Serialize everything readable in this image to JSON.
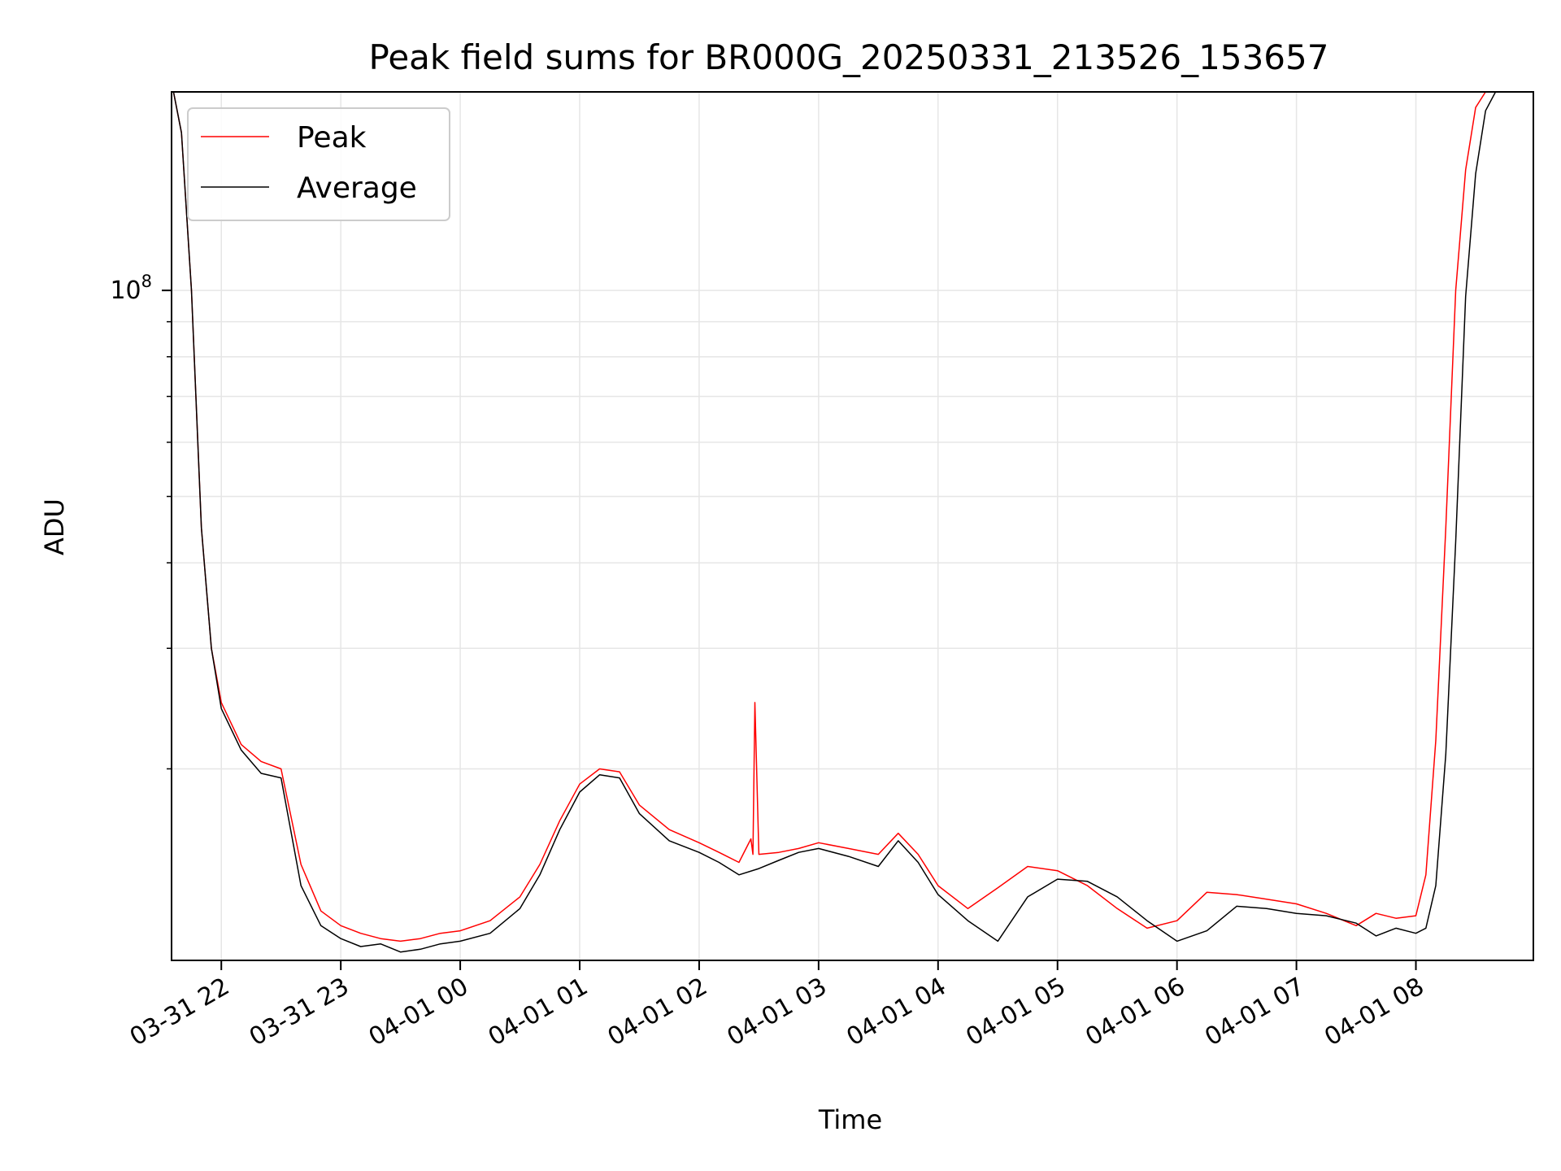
{
  "chart_data": {
    "type": "line",
    "title": "Peak field sums for BR000G_20250331_213526_153657",
    "xlabel": "Time",
    "ylabel": "ADU",
    "y_scale": "log",
    "grid": true,
    "legend_position": "top-left",
    "xlim": [
      "2025-03-31 21:35",
      "2025-04-01 08:59"
    ],
    "ylim": [
      10500000,
      195000000
    ],
    "x_ticks": [
      {
        "value": "2025-03-31 22:00",
        "label": "03-31 22"
      },
      {
        "value": "2025-03-31 23:00",
        "label": "03-31 23"
      },
      {
        "value": "2025-04-01 00:00",
        "label": "04-01 00"
      },
      {
        "value": "2025-04-01 01:00",
        "label": "04-01 01"
      },
      {
        "value": "2025-04-01 02:00",
        "label": "04-01 02"
      },
      {
        "value": "2025-04-01 03:00",
        "label": "04-01 03"
      },
      {
        "value": "2025-04-01 04:00",
        "label": "04-01 04"
      },
      {
        "value": "2025-04-01 05:00",
        "label": "04-01 05"
      },
      {
        "value": "2025-04-01 06:00",
        "label": "04-01 06"
      },
      {
        "value": "2025-04-01 07:00",
        "label": "04-01 07"
      },
      {
        "value": "2025-04-01 08:00",
        "label": "04-01 08"
      }
    ],
    "y_major_ticks": [
      {
        "value": 100000000,
        "base": "10",
        "exponent": "8"
      }
    ],
    "y_minor_ticks": [
      20000000,
      30000000,
      40000000,
      50000000,
      60000000,
      70000000,
      80000000,
      90000000
    ],
    "series": [
      {
        "name": "Peak",
        "color": "#ff0000",
        "x": [
          "2025-03-31 21:36",
          "2025-03-31 21:40",
          "2025-03-31 21:45",
          "2025-03-31 21:50",
          "2025-03-31 21:55",
          "2025-03-31 22:00",
          "2025-03-31 22:10",
          "2025-03-31 22:20",
          "2025-03-31 22:30",
          "2025-03-31 22:40",
          "2025-03-31 22:50",
          "2025-03-31 23:00",
          "2025-03-31 23:10",
          "2025-03-31 23:20",
          "2025-03-31 23:30",
          "2025-03-31 23:40",
          "2025-03-31 23:50",
          "2025-04-01 00:00",
          "2025-04-01 00:15",
          "2025-04-01 00:30",
          "2025-04-01 00:40",
          "2025-04-01 00:50",
          "2025-04-01 01:00",
          "2025-04-01 01:10",
          "2025-04-01 01:20",
          "2025-04-01 01:30",
          "2025-04-01 01:45",
          "2025-04-01 02:00",
          "2025-04-01 02:10",
          "2025-04-01 02:20",
          "2025-04-01 02:26",
          "2025-04-01 02:27",
          "2025-04-01 02:28",
          "2025-04-01 02:30",
          "2025-04-01 02:40",
          "2025-04-01 02:50",
          "2025-04-01 03:00",
          "2025-04-01 03:15",
          "2025-04-01 03:30",
          "2025-04-01 03:40",
          "2025-04-01 03:50",
          "2025-04-01 04:00",
          "2025-04-01 04:15",
          "2025-04-01 04:30",
          "2025-04-01 04:45",
          "2025-04-01 05:00",
          "2025-04-01 05:15",
          "2025-04-01 05:30",
          "2025-04-01 05:45",
          "2025-04-01 06:00",
          "2025-04-01 06:15",
          "2025-04-01 06:30",
          "2025-04-01 06:45",
          "2025-04-01 07:00",
          "2025-04-01 07:15",
          "2025-04-01 07:30",
          "2025-04-01 07:40",
          "2025-04-01 07:50",
          "2025-04-01 08:00",
          "2025-04-01 08:05",
          "2025-04-01 08:10",
          "2025-04-01 08:15",
          "2025-04-01 08:20",
          "2025-04-01 08:25",
          "2025-04-01 08:30",
          "2025-04-01 08:35",
          "2025-04-01 08:40",
          "2025-04-01 08:45",
          "2025-04-01 08:50"
        ],
        "y": [
          195000000,
          170000000,
          100000000,
          45000000,
          30000000,
          25000000,
          21700000,
          20500000,
          20000000,
          14500000,
          12400000,
          11800000,
          11500000,
          11300000,
          11200000,
          11300000,
          11500000,
          11600000,
          12000000,
          13000000,
          14500000,
          16800000,
          19000000,
          20000000,
          19800000,
          17700000,
          16300000,
          15600000,
          15100000,
          14600000,
          15800000,
          15000000,
          25000000,
          15000000,
          15100000,
          15300000,
          15600000,
          15300000,
          15000000,
          16100000,
          15000000,
          13500000,
          12500000,
          13400000,
          14400000,
          14200000,
          13500000,
          12500000,
          11700000,
          12000000,
          13200000,
          13100000,
          12900000,
          12700000,
          12300000,
          11800000,
          12300000,
          12100000,
          12200000,
          14000000,
          22000000,
          45000000,
          100000000,
          150000000,
          185000000,
          195000000,
          195000000,
          195000000,
          195000000
        ]
      },
      {
        "name": "Average",
        "color": "#000000",
        "x": [
          "2025-03-31 21:36",
          "2025-03-31 21:40",
          "2025-03-31 21:45",
          "2025-03-31 21:50",
          "2025-03-31 21:55",
          "2025-03-31 22:00",
          "2025-03-31 22:10",
          "2025-03-31 22:20",
          "2025-03-31 22:30",
          "2025-03-31 22:40",
          "2025-03-31 22:50",
          "2025-03-31 23:00",
          "2025-03-31 23:10",
          "2025-03-31 23:20",
          "2025-03-31 23:30",
          "2025-03-31 23:40",
          "2025-03-31 23:50",
          "2025-04-01 00:00",
          "2025-04-01 00:15",
          "2025-04-01 00:30",
          "2025-04-01 00:40",
          "2025-04-01 00:50",
          "2025-04-01 01:00",
          "2025-04-01 01:10",
          "2025-04-01 01:20",
          "2025-04-01 01:30",
          "2025-04-01 01:45",
          "2025-04-01 02:00",
          "2025-04-01 02:10",
          "2025-04-01 02:20",
          "2025-04-01 02:30",
          "2025-04-01 02:40",
          "2025-04-01 02:50",
          "2025-04-01 03:00",
          "2025-04-01 03:15",
          "2025-04-01 03:30",
          "2025-04-01 03:40",
          "2025-04-01 03:50",
          "2025-04-01 04:00",
          "2025-04-01 04:15",
          "2025-04-01 04:30",
          "2025-04-01 04:45",
          "2025-04-01 05:00",
          "2025-04-01 05:15",
          "2025-04-01 05:30",
          "2025-04-01 05:45",
          "2025-04-01 06:00",
          "2025-04-01 06:15",
          "2025-04-01 06:30",
          "2025-04-01 06:45",
          "2025-04-01 07:00",
          "2025-04-01 07:15",
          "2025-04-01 07:30",
          "2025-04-01 07:40",
          "2025-04-01 07:50",
          "2025-04-01 08:00",
          "2025-04-01 08:05",
          "2025-04-01 08:10",
          "2025-04-01 08:15",
          "2025-04-01 08:20",
          "2025-04-01 08:25",
          "2025-04-01 08:30",
          "2025-04-01 08:35",
          "2025-04-01 08:40",
          "2025-04-01 08:45",
          "2025-04-01 08:50"
        ],
        "y": [
          195000000,
          170000000,
          100000000,
          45000000,
          30000000,
          24500000,
          21300000,
          19700000,
          19400000,
          13500000,
          11800000,
          11300000,
          11000000,
          11100000,
          10800000,
          10900000,
          11100000,
          11200000,
          11500000,
          12500000,
          14000000,
          16300000,
          18500000,
          19600000,
          19400000,
          17200000,
          15700000,
          15100000,
          14600000,
          14000000,
          14300000,
          14700000,
          15100000,
          15300000,
          14900000,
          14400000,
          15700000,
          14600000,
          13100000,
          12000000,
          11200000,
          13000000,
          13800000,
          13700000,
          13000000,
          12000000,
          11200000,
          11600000,
          12600000,
          12500000,
          12300000,
          12200000,
          11900000,
          11400000,
          11700000,
          11500000,
          11700000,
          13500000,
          21000000,
          43000000,
          98000000,
          148000000,
          183000000,
          195000000,
          195000000,
          195000000
        ]
      }
    ]
  }
}
